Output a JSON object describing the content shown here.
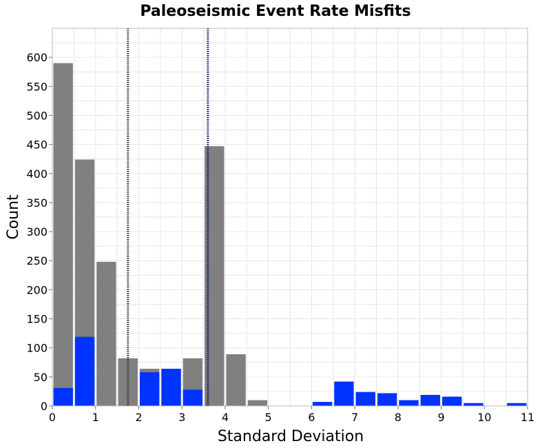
{
  "chart_data": {
    "type": "bar",
    "title": "Paleoseismic Event Rate Misfits",
    "xlabel": "Standard Deviation",
    "ylabel": "Count",
    "xlim": [
      0,
      11
    ],
    "ylim": [
      0,
      650
    ],
    "bin_width": 0.5,
    "x_ticks": [
      "0",
      "1",
      "2",
      "3",
      "4",
      "5",
      "6",
      "7",
      "8",
      "9",
      "10",
      "11"
    ],
    "y_ticks": [
      "0",
      "50",
      "100",
      "150",
      "200",
      "250",
      "300",
      "350",
      "400",
      "450",
      "500",
      "550",
      "600"
    ],
    "grid": true,
    "series": [
      {
        "name": "gray histogram",
        "color": "#808080",
        "bin_starts": [
          0,
          0.5,
          1,
          1.5,
          2,
          2.5,
          3,
          3.5,
          4,
          4.5
        ],
        "values": [
          590,
          424,
          248,
          82,
          64,
          64,
          82,
          447,
          89,
          10
        ]
      },
      {
        "name": "blue histogram",
        "color": "#0033ff",
        "bin_starts": [
          0,
          0.5,
          1,
          1.5,
          2,
          2.5,
          3,
          3.5,
          4,
          4.5,
          5,
          5.5,
          6,
          6.5,
          7,
          7.5,
          8,
          8.5,
          9,
          9.5,
          10,
          10.5
        ],
        "values": [
          31,
          119,
          0,
          0,
          58,
          64,
          28,
          0,
          0,
          0,
          0,
          0,
          7,
          42,
          24,
          22,
          10,
          19,
          16,
          5,
          0,
          5
        ]
      }
    ],
    "vertical_lines": [
      {
        "x": 1.75,
        "color": "#333333",
        "style": "dotted"
      },
      {
        "x": 3.6,
        "color": "#001a66",
        "style": "dotted"
      }
    ]
  }
}
